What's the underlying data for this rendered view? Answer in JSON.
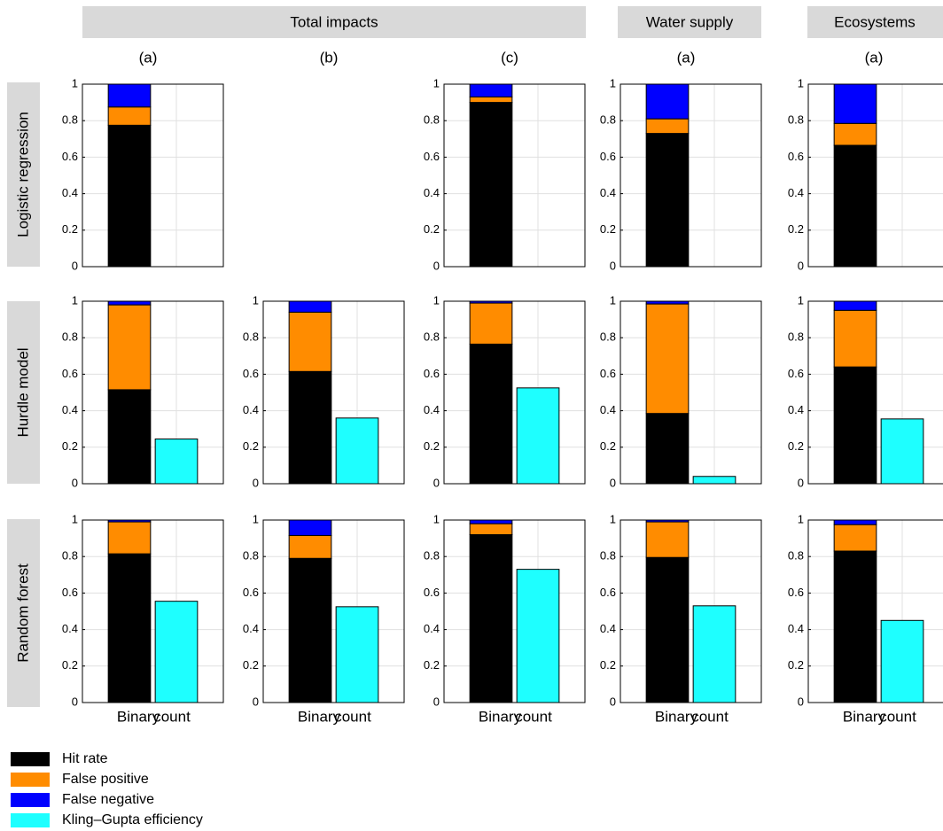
{
  "headers": [
    "Total impacts",
    "Water supply",
    "Ecosystems"
  ],
  "column_labels": [
    "(a)",
    "(b)",
    "(c)",
    "(a)",
    "(a)"
  ],
  "row_labels": [
    "Logistic regression",
    "Hurdle model",
    "Random forest"
  ],
  "legend": [
    {
      "name": "Hit rate",
      "color": "#000000"
    },
    {
      "name": "False positive",
      "color": "#ff8c00"
    },
    {
      "name": "False negative",
      "color": "#0000ff"
    },
    {
      "name": "Kling–Gupta efficiency",
      "color": "#1effff"
    }
  ],
  "chart_data": [
    {
      "type": "bar",
      "stacked": true,
      "grid": true,
      "ylim": [
        0,
        1
      ],
      "yticks": [
        0,
        0.2,
        0.4,
        0.6,
        0.8,
        1
      ],
      "series": [
        {
          "values": [
            0.775,
            null
          ]
        },
        {
          "values": [
            0.1,
            null
          ]
        },
        {
          "values": [
            0.125,
            null
          ]
        }
      ]
    },
    {
      "type": "bar",
      "stacked": true,
      "grid": true,
      "ylim": [
        0,
        1
      ],
      "yticks": [
        0,
        0.2,
        0.4,
        0.6,
        0.8,
        1
      ],
      "series": [
        {
          "values": [
            0.9,
            null
          ]
        },
        {
          "values": [
            0.03,
            null
          ]
        },
        {
          "values": [
            0.07,
            null
          ]
        }
      ]
    },
    {
      "type": "bar",
      "stacked": true,
      "grid": true,
      "ylim": [
        0,
        1
      ],
      "yticks": [
        0,
        0.2,
        0.4,
        0.6,
        0.8,
        1
      ],
      "series": [
        {
          "values": [
            0.73,
            null
          ]
        },
        {
          "values": [
            0.08,
            null
          ]
        },
        {
          "values": [
            0.19,
            null
          ]
        }
      ]
    },
    {
      "type": "bar",
      "stacked": true,
      "grid": true,
      "ylim": [
        0,
        1
      ],
      "yticks": [
        0,
        0.2,
        0.4,
        0.6,
        0.8,
        1
      ],
      "series": [
        {
          "values": [
            0.665,
            null
          ]
        },
        {
          "values": [
            0.12,
            null
          ]
        },
        {
          "values": [
            0.215,
            null
          ]
        }
      ]
    },
    {
      "type": "bar",
      "stacked": true,
      "grid": true,
      "ylim": [
        0,
        1
      ],
      "yticks": [
        0,
        0.2,
        0.4,
        0.6,
        0.8,
        1
      ],
      "series": [
        {
          "values": [
            0.515,
            null
          ]
        },
        {
          "values": [
            0.465,
            null
          ]
        },
        {
          "values": [
            0.02,
            null
          ]
        },
        {
          "values": [
            null,
            0.245
          ]
        }
      ]
    },
    {
      "type": "bar",
      "stacked": true,
      "grid": true,
      "ylim": [
        0,
        1
      ],
      "yticks": [
        0,
        0.2,
        0.4,
        0.6,
        0.8,
        1
      ],
      "series": [
        {
          "values": [
            0.615,
            null
          ]
        },
        {
          "values": [
            0.325,
            null
          ]
        },
        {
          "values": [
            0.06,
            null
          ]
        },
        {
          "values": [
            null,
            0.36
          ]
        }
      ]
    },
    {
      "type": "bar",
      "stacked": true,
      "grid": true,
      "ylim": [
        0,
        1
      ],
      "yticks": [
        0,
        0.2,
        0.4,
        0.6,
        0.8,
        1
      ],
      "series": [
        {
          "values": [
            0.765,
            null
          ]
        },
        {
          "values": [
            0.225,
            null
          ]
        },
        {
          "values": [
            0.01,
            null
          ]
        },
        {
          "values": [
            null,
            0.525
          ]
        }
      ]
    },
    {
      "type": "bar",
      "stacked": true,
      "grid": true,
      "ylim": [
        0,
        1
      ],
      "yticks": [
        0,
        0.2,
        0.4,
        0.6,
        0.8,
        1
      ],
      "series": [
        {
          "values": [
            0.385,
            null
          ]
        },
        {
          "values": [
            0.6,
            null
          ]
        },
        {
          "values": [
            0.015,
            null
          ]
        },
        {
          "values": [
            null,
            0.04
          ]
        }
      ]
    },
    {
      "type": "bar",
      "stacked": true,
      "grid": true,
      "ylim": [
        0,
        1
      ],
      "yticks": [
        0,
        0.2,
        0.4,
        0.6,
        0.8,
        1
      ],
      "series": [
        {
          "values": [
            0.64,
            null
          ]
        },
        {
          "values": [
            0.31,
            null
          ]
        },
        {
          "values": [
            0.05,
            null
          ]
        },
        {
          "values": [
            null,
            0.355
          ]
        }
      ]
    },
    {
      "type": "bar",
      "stacked": true,
      "grid": true,
      "ylim": [
        0,
        1
      ],
      "yticks": [
        0,
        0.2,
        0.4,
        0.6,
        0.8,
        1
      ],
      "categories": [
        "Binary",
        "count"
      ],
      "series": [
        {
          "values": [
            0.815,
            null
          ]
        },
        {
          "values": [
            0.175,
            null
          ]
        },
        {
          "values": [
            0.01,
            null
          ]
        },
        {
          "values": [
            null,
            0.555
          ]
        }
      ]
    },
    {
      "type": "bar",
      "stacked": true,
      "grid": true,
      "ylim": [
        0,
        1
      ],
      "yticks": [
        0,
        0.2,
        0.4,
        0.6,
        0.8,
        1
      ],
      "categories": [
        "Binary",
        "count"
      ],
      "series": [
        {
          "values": [
            0.79,
            null
          ]
        },
        {
          "values": [
            0.125,
            null
          ]
        },
        {
          "values": [
            0.085,
            null
          ]
        },
        {
          "values": [
            null,
            0.525
          ]
        }
      ]
    },
    {
      "type": "bar",
      "stacked": true,
      "grid": true,
      "ylim": [
        0,
        1
      ],
      "yticks": [
        0,
        0.2,
        0.4,
        0.6,
        0.8,
        1
      ],
      "categories": [
        "Binary",
        "count"
      ],
      "series": [
        {
          "values": [
            0.92,
            null
          ]
        },
        {
          "values": [
            0.06,
            null
          ]
        },
        {
          "values": [
            0.02,
            null
          ]
        },
        {
          "values": [
            null,
            0.73
          ]
        }
      ]
    },
    {
      "type": "bar",
      "stacked": true,
      "grid": true,
      "ylim": [
        0,
        1
      ],
      "yticks": [
        0,
        0.2,
        0.4,
        0.6,
        0.8,
        1
      ],
      "categories": [
        "Binary",
        "count"
      ],
      "series": [
        {
          "values": [
            0.795,
            null
          ]
        },
        {
          "values": [
            0.195,
            null
          ]
        },
        {
          "values": [
            0.01,
            null
          ]
        },
        {
          "values": [
            null,
            0.53
          ]
        }
      ]
    },
    {
      "type": "bar",
      "stacked": true,
      "grid": true,
      "ylim": [
        0,
        1
      ],
      "yticks": [
        0,
        0.2,
        0.4,
        0.6,
        0.8,
        1
      ],
      "categories": [
        "Binary",
        "count"
      ],
      "series": [
        {
          "values": [
            0.83,
            null
          ]
        },
        {
          "values": [
            0.145,
            null
          ]
        },
        {
          "values": [
            0.025,
            null
          ]
        },
        {
          "values": [
            null,
            0.45
          ]
        }
      ]
    }
  ]
}
